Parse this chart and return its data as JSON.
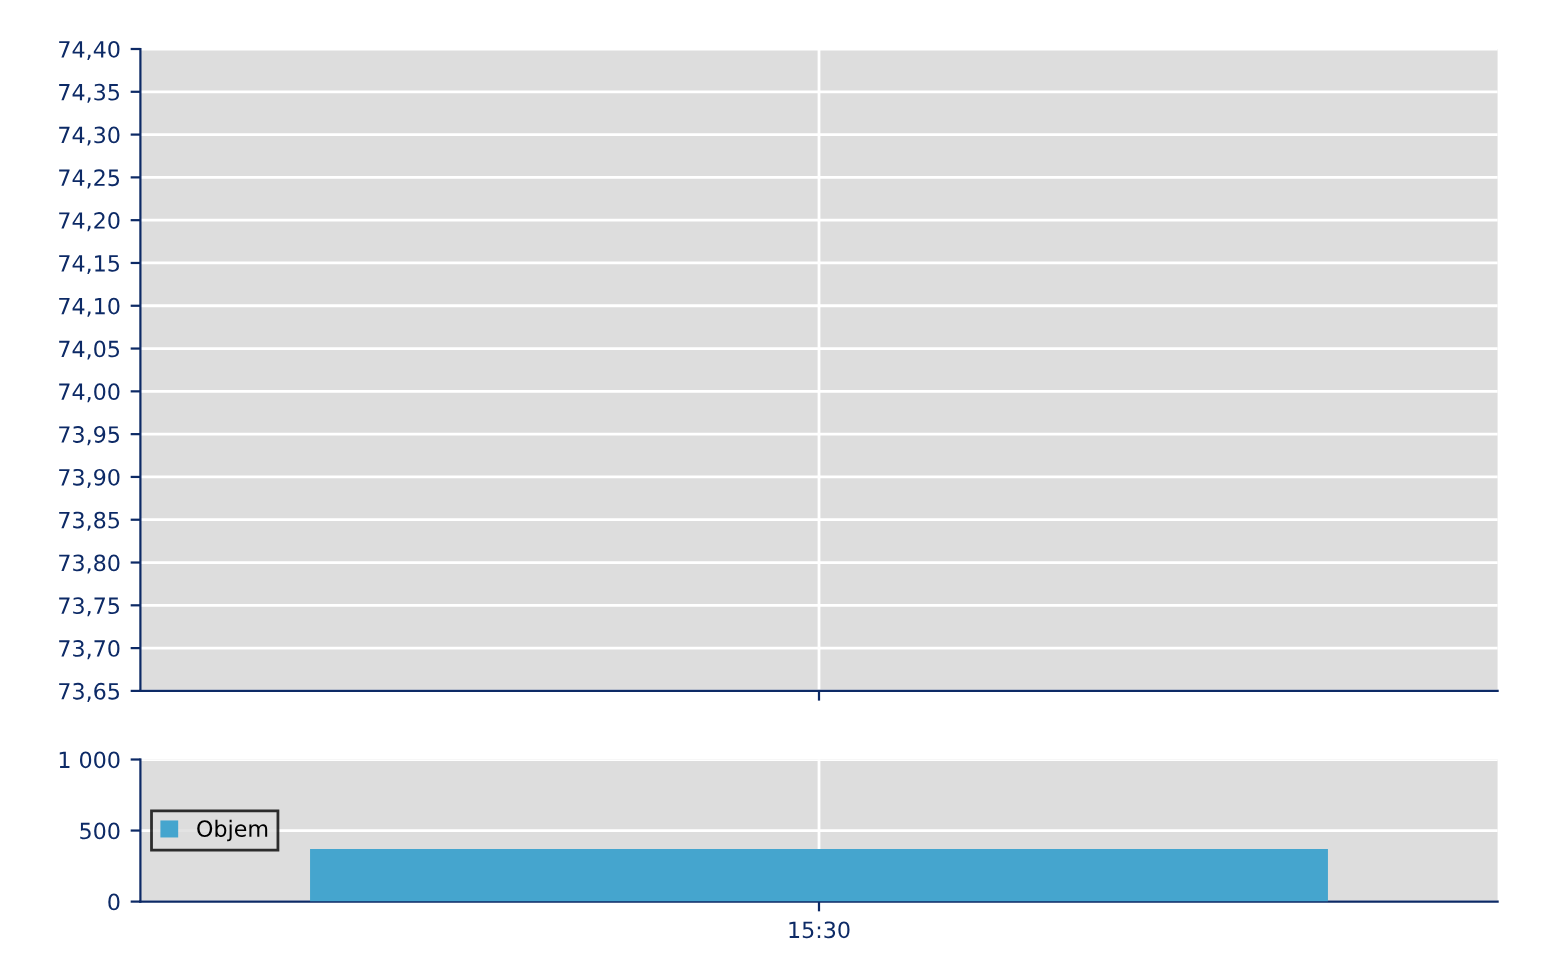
{
  "chart_data": [
    {
      "type": "line",
      "categories": [
        null
      ],
      "series": [
        {
          "values": [
            null
          ],
          "color": "#1f3a93"
        }
      ],
      "ylim": [
        73.65,
        74.4
      ],
      "yticks": [
        {
          "value": 73.65,
          "label": "73,65"
        },
        {
          "value": 73.7,
          "label": "73,70"
        },
        {
          "value": 73.75,
          "label": "73,75"
        },
        {
          "value": 73.8,
          "label": "73,80"
        },
        {
          "value": 73.85,
          "label": "73,85"
        },
        {
          "value": 73.9,
          "label": "73,90"
        },
        {
          "value": 73.95,
          "label": "73,95"
        },
        {
          "value": 74.0,
          "label": "74,00"
        },
        {
          "value": 74.05,
          "label": "74,05"
        },
        {
          "value": 74.1,
          "label": "74,10"
        },
        {
          "value": 74.15,
          "label": "74,15"
        },
        {
          "value": 74.2,
          "label": "74,20"
        },
        {
          "value": 74.25,
          "label": "74,25"
        },
        {
          "value": 74.3,
          "label": "74,30"
        },
        {
          "value": 74.35,
          "label": "74,35"
        },
        {
          "value": 74.4,
          "label": "74,40"
        }
      ],
      "grid": true,
      "tick_labels": "y"
    },
    {
      "type": "bar",
      "categories": [
        "15:30"
      ],
      "series": [
        {
          "name": "Objem",
          "color": "#45a5ce",
          "values": [
            370
          ]
        }
      ],
      "ylim": [
        0,
        1000
      ],
      "yticks": [
        0,
        500,
        {
          "value": 1000,
          "label": "1 000"
        }
      ],
      "grid": true,
      "legend": "left"
    }
  ]
}
